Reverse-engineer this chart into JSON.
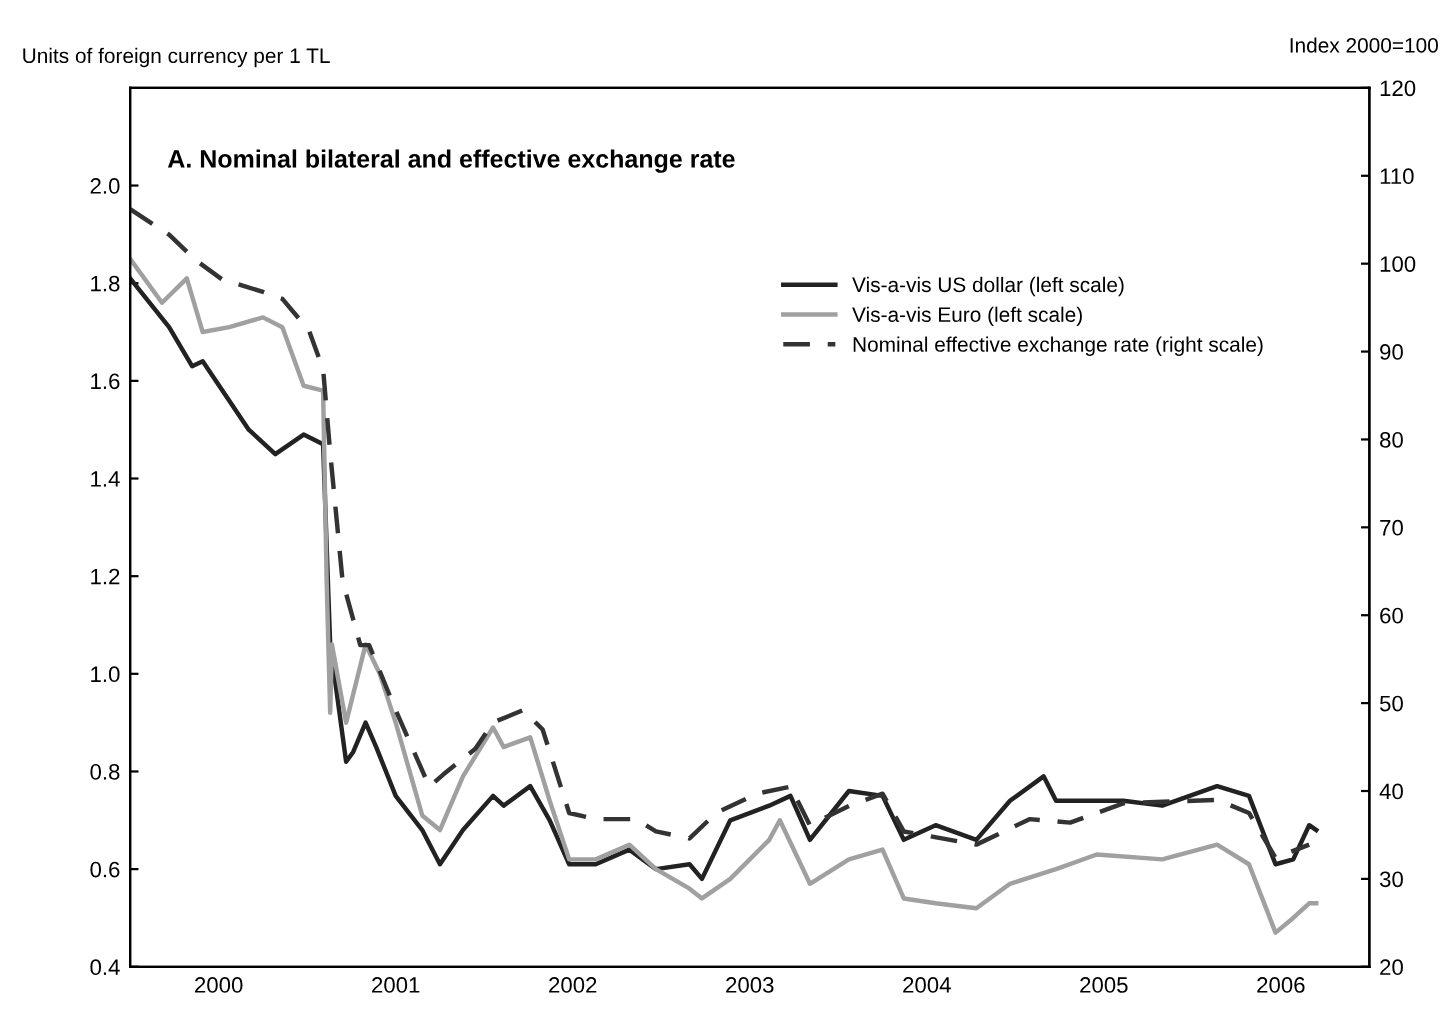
{
  "chart_data": {
    "type": "line",
    "title": "A. Nominal bilateral and effective exchange rate",
    "ylabel": "Units of foreign currency per 1 TL",
    "y2label": "Index 2000=100",
    "xlim": [
      2000,
      2007
    ],
    "xticks": [
      {
        "value": 2000.5,
        "label": "2000"
      },
      {
        "value": 2001.5,
        "label": "2001"
      },
      {
        "value": 2002.5,
        "label": "2002"
      },
      {
        "value": 2003.5,
        "label": "2003"
      },
      {
        "value": 2004.5,
        "label": "2004"
      },
      {
        "value": 2005.5,
        "label": "2005"
      },
      {
        "value": 2006.5,
        "label": "2006"
      }
    ],
    "ylim": [
      0.4,
      2.2
    ],
    "yticks": [
      {
        "value": 0.4,
        "label": "0.4"
      },
      {
        "value": 0.6,
        "label": "0.6"
      },
      {
        "value": 0.8,
        "label": "0.8"
      },
      {
        "value": 1.0,
        "label": "1.0"
      },
      {
        "value": 1.2,
        "label": "1.2"
      },
      {
        "value": 1.4,
        "label": "1.4"
      },
      {
        "value": 1.6,
        "label": "1.6"
      },
      {
        "value": 1.8,
        "label": "1.8"
      },
      {
        "value": 2.0,
        "label": "2.0"
      }
    ],
    "y2lim": [
      20,
      120
    ],
    "y2ticks": [
      20,
      30,
      40,
      50,
      60,
      70,
      80,
      90,
      100,
      110,
      120
    ],
    "grid": false,
    "legend": "right",
    "marker": "none",
    "series": [
      {
        "name": "Vis-a-vis US dollar (left scale)",
        "color": "#222222",
        "line_style": "solid",
        "x": [
          2000.0,
          2000.22,
          2000.35,
          2000.41,
          2000.67,
          2000.82,
          2000.98,
          2001.09,
          2001.12,
          2001.13,
          2001.16,
          2001.22,
          2001.26,
          2001.33,
          2001.39,
          2001.5,
          2001.65,
          2001.75,
          2001.88,
          2002.05,
          2002.11,
          2002.26,
          2002.37,
          2002.48,
          2002.63,
          2002.82,
          2002.97,
          2003.16,
          2003.23,
          2003.39,
          2003.61,
          2003.73,
          2003.84,
          2004.06,
          2004.25,
          2004.37,
          2004.55,
          2004.78,
          2004.97,
          2005.16,
          2005.23,
          2005.61,
          2005.83,
          2006.14,
          2006.32,
          2006.47,
          2006.57,
          2006.66,
          2006.7
        ],
        "values": [
          1.81,
          1.71,
          1.63,
          1.64,
          1.5,
          1.45,
          1.49,
          1.47,
          1.16,
          1.06,
          0.98,
          0.82,
          0.84,
          0.9,
          0.85,
          0.75,
          0.68,
          0.61,
          0.68,
          0.75,
          0.73,
          0.77,
          0.7,
          0.61,
          0.61,
          0.64,
          0.6,
          0.61,
          0.58,
          0.7,
          0.73,
          0.75,
          0.66,
          0.76,
          0.75,
          0.66,
          0.69,
          0.66,
          0.74,
          0.79,
          0.74,
          0.74,
          0.73,
          0.77,
          0.75,
          0.61,
          0.62,
          0.69,
          0.68
        ]
      },
      {
        "name": "Vis-a-vis Euro (left scale)",
        "color": "#a0a0a0",
        "line_style": "solid",
        "x": [
          2000.0,
          2000.18,
          2000.32,
          2000.41,
          2000.56,
          2000.75,
          2000.86,
          2000.98,
          2001.09,
          2001.11,
          2001.13,
          2001.14,
          2001.22,
          2001.33,
          2001.41,
          2001.5,
          2001.65,
          2001.75,
          2001.88,
          2002.05,
          2002.11,
          2002.26,
          2002.37,
          2002.48,
          2002.63,
          2002.82,
          2002.97,
          2003.16,
          2003.23,
          2003.39,
          2003.61,
          2003.67,
          2003.84,
          2004.06,
          2004.25,
          2004.37,
          2004.55,
          2004.78,
          2004.97,
          2005.23,
          2005.46,
          2005.83,
          2006.14,
          2006.32,
          2006.47,
          2006.57,
          2006.66,
          2006.7
        ],
        "values": [
          1.85,
          1.76,
          1.81,
          1.7,
          1.71,
          1.73,
          1.71,
          1.59,
          1.58,
          1.19,
          0.92,
          1.06,
          0.9,
          1.06,
          1.0,
          0.9,
          0.71,
          0.68,
          0.79,
          0.89,
          0.85,
          0.87,
          0.74,
          0.62,
          0.62,
          0.65,
          0.6,
          0.56,
          0.54,
          0.58,
          0.66,
          0.7,
          0.57,
          0.62,
          0.64,
          0.54,
          0.53,
          0.52,
          0.57,
          0.6,
          0.63,
          0.62,
          0.65,
          0.61,
          0.47,
          0.5,
          0.53,
          0.53
        ]
      },
      {
        "name": "Nominal effective exchange rate (right scale)",
        "color": "#333333",
        "line_style": "dashed",
        "axis": "y2",
        "x": [
          2000.0,
          2000.22,
          2000.37,
          2000.52,
          2000.75,
          2000.86,
          2001.01,
          2001.09,
          2001.13,
          2001.2,
          2001.3,
          2001.35,
          2001.5,
          2001.69,
          2001.77,
          2001.95,
          2002.05,
          2002.22,
          2002.33,
          2002.48,
          2002.63,
          2002.86,
          2002.97,
          2003.16,
          2003.31,
          2003.54,
          2003.73,
          2003.84,
          2004.06,
          2004.25,
          2004.37,
          2004.78,
          2005.08,
          2005.31,
          2005.61,
          2006.14,
          2006.32,
          2006.47,
          2006.66
        ],
        "values": [
          106.2,
          103.3,
          100.4,
          98.2,
          96.8,
          96.0,
          92.4,
          88.0,
          78.5,
          63.9,
          56.6,
          56.6,
          49.2,
          40.5,
          41.9,
          44.8,
          47.8,
          49.2,
          47.0,
          37.5,
          36.8,
          36.8,
          35.4,
          34.6,
          37.5,
          39.7,
          40.5,
          36.1,
          38.3,
          39.7,
          35.4,
          33.9,
          36.8,
          36.4,
          38.6,
          39.0,
          37.5,
          32.4,
          33.9
        ]
      }
    ]
  }
}
